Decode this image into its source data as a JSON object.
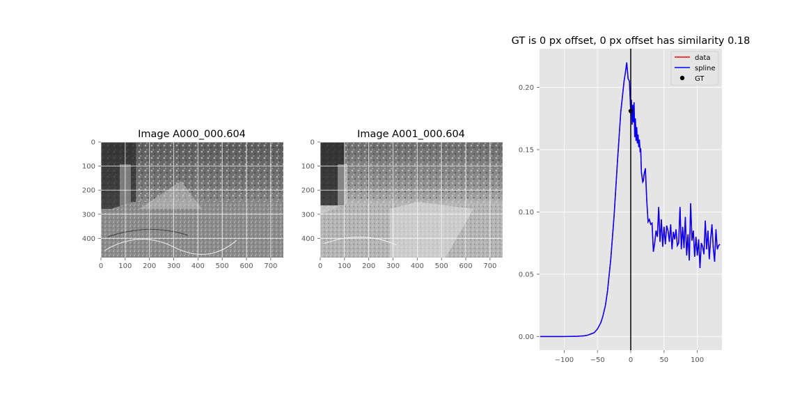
{
  "panels": [
    {
      "title": "Image A000_000.604",
      "xticks": [
        0,
        100,
        200,
        300,
        400,
        500,
        600,
        700
      ],
      "yticks": [
        0,
        100,
        200,
        300,
        400
      ],
      "xlim": [
        0,
        752
      ],
      "ylim": [
        480,
        0
      ],
      "image": "grayscale outdoor scene: overgrown path, trees and a shed on the left"
    },
    {
      "title": "Image A001_000.604",
      "xticks": [
        0,
        100,
        200,
        300,
        400,
        500,
        600,
        700
      ],
      "yticks": [
        0,
        100,
        200,
        300,
        400
      ],
      "xlim": [
        0,
        752
      ],
      "ylim": [
        480,
        0
      ],
      "image": "grayscale outdoor scene, brighter exposure: overgrown path, trees and a shed on the left"
    }
  ],
  "chart_data": {
    "type": "line",
    "title": "GT is 0 px offset, 0 px offset has similarity 0.18",
    "xlabel": "",
    "ylabel": "",
    "xlim": [
      -137,
      137
    ],
    "ylim": [
      -0.011,
      0.231
    ],
    "xticks": [
      -100,
      -50,
      0,
      50,
      100
    ],
    "xtick_labels": [
      "−100",
      "−50",
      "0",
      "50",
      "100"
    ],
    "yticks": [
      0.0,
      0.05,
      0.1,
      0.15,
      0.2
    ],
    "ytick_labels": [
      "0.00",
      "0.05",
      "0.10",
      "0.15",
      "0.20"
    ],
    "grid": true,
    "legend_position": "top-right",
    "background": "#e5e5e5",
    "vline_x": 0,
    "series": [
      {
        "name": "data",
        "color": "#ff0000",
        "x": [
          -136,
          -130,
          -120,
          -110,
          -100,
          -90,
          -80,
          -70,
          -65,
          -60,
          -55,
          -50,
          -45,
          -42,
          -38,
          -35,
          -30,
          -25,
          -20,
          -15,
          -10,
          -8,
          -6,
          -4,
          -2,
          0,
          1,
          2,
          3,
          4,
          5,
          6,
          7,
          8,
          9,
          10,
          11,
          12,
          13,
          14,
          15,
          16,
          17,
          18,
          19,
          20,
          22,
          24,
          26,
          28,
          30,
          32,
          34,
          36,
          38,
          40,
          42,
          44,
          46,
          48,
          50,
          52,
          54,
          56,
          58,
          60,
          62,
          64,
          66,
          68,
          70,
          72,
          74,
          76,
          78,
          80,
          82,
          84,
          86,
          88,
          90,
          92,
          94,
          96,
          98,
          100,
          102,
          104,
          106,
          108,
          110,
          112,
          114,
          116,
          118,
          120,
          122,
          124,
          126,
          128,
          130,
          132,
          134
        ],
        "y": [
          0.0,
          0.0,
          0.0,
          0.0,
          0.0,
          0.0,
          0.0002,
          0.0005,
          0.001,
          0.002,
          0.003,
          0.006,
          0.011,
          0.016,
          0.025,
          0.036,
          0.062,
          0.097,
          0.14,
          0.18,
          0.205,
          0.212,
          0.22,
          0.207,
          0.205,
          0.18,
          0.19,
          0.17,
          0.186,
          0.172,
          0.188,
          0.16,
          0.175,
          0.157,
          0.168,
          0.155,
          0.162,
          0.152,
          0.158,
          0.149,
          0.15,
          0.132,
          0.128,
          0.124,
          0.125,
          0.13,
          0.135,
          0.11,
          0.092,
          0.094,
          0.09,
          0.091,
          0.068,
          0.075,
          0.085,
          0.08,
          0.104,
          0.076,
          0.094,
          0.072,
          0.088,
          0.074,
          0.089,
          0.085,
          0.076,
          0.09,
          0.07,
          0.084,
          0.078,
          0.086,
          0.073,
          0.075,
          0.104,
          0.07,
          0.088,
          0.071,
          0.096,
          0.065,
          0.082,
          0.061,
          0.107,
          0.077,
          0.085,
          0.064,
          0.08,
          0.065,
          0.078,
          0.055,
          0.075,
          0.072,
          0.066,
          0.093,
          0.07,
          0.085,
          0.062,
          0.078,
          0.09,
          0.071,
          0.06,
          0.086,
          0.07,
          0.073,
          0.074
        ],
        "points": [
          [
            -136,
            0.0
          ],
          [
            -100,
            0.0
          ],
          [
            -80,
            0.0002
          ],
          [
            -70,
            0.0005
          ],
          [
            -65,
            0.001
          ],
          [
            -60,
            0.002
          ],
          [
            -55,
            0.003
          ],
          [
            -50,
            0.006
          ],
          [
            -45,
            0.011
          ],
          [
            -42,
            0.016
          ],
          [
            -38,
            0.025
          ],
          [
            -35,
            0.036
          ],
          [
            -30,
            0.062
          ],
          [
            -25,
            0.097
          ],
          [
            -20,
            0.14
          ],
          [
            -15,
            0.18
          ],
          [
            -10,
            0.205
          ],
          [
            -8,
            0.212
          ],
          [
            -6,
            0.22
          ],
          [
            -4,
            0.207
          ],
          [
            -2,
            0.205
          ],
          [
            0,
            0.18
          ],
          [
            1,
            0.19
          ],
          [
            2,
            0.17
          ],
          [
            3,
            0.186
          ],
          [
            4,
            0.172
          ],
          [
            5,
            0.188
          ],
          [
            6,
            0.16
          ],
          [
            7,
            0.175
          ],
          [
            8,
            0.157
          ],
          [
            9,
            0.168
          ],
          [
            10,
            0.155
          ],
          [
            11,
            0.162
          ],
          [
            12,
            0.152
          ],
          [
            13,
            0.158
          ],
          [
            14,
            0.149
          ],
          [
            15,
            0.15
          ],
          [
            16,
            0.132
          ],
          [
            17,
            0.128
          ],
          [
            18,
            0.124
          ],
          [
            19,
            0.125
          ],
          [
            20,
            0.13
          ],
          [
            22,
            0.135
          ],
          [
            24,
            0.11
          ],
          [
            26,
            0.092
          ],
          [
            28,
            0.094
          ],
          [
            30,
            0.09
          ],
          [
            32,
            0.091
          ],
          [
            34,
            0.068
          ],
          [
            36,
            0.075
          ],
          [
            38,
            0.085
          ],
          [
            40,
            0.08
          ],
          [
            42,
            0.104
          ],
          [
            44,
            0.076
          ],
          [
            46,
            0.094
          ],
          [
            48,
            0.072
          ],
          [
            50,
            0.088
          ],
          [
            52,
            0.074
          ],
          [
            54,
            0.089
          ],
          [
            56,
            0.085
          ],
          [
            58,
            0.076
          ],
          [
            60,
            0.09
          ],
          [
            62,
            0.07
          ],
          [
            64,
            0.084
          ],
          [
            66,
            0.078
          ],
          [
            68,
            0.086
          ],
          [
            70,
            0.073
          ],
          [
            72,
            0.075
          ],
          [
            74,
            0.104
          ],
          [
            76,
            0.07
          ],
          [
            78,
            0.088
          ],
          [
            80,
            0.071
          ],
          [
            82,
            0.096
          ],
          [
            84,
            0.065
          ],
          [
            86,
            0.082
          ],
          [
            88,
            0.061
          ],
          [
            90,
            0.107
          ],
          [
            92,
            0.077
          ],
          [
            94,
            0.085
          ],
          [
            96,
            0.064
          ],
          [
            98,
            0.08
          ],
          [
            100,
            0.065
          ],
          [
            102,
            0.078
          ],
          [
            104,
            0.055
          ],
          [
            106,
            0.075
          ],
          [
            108,
            0.072
          ],
          [
            110,
            0.066
          ],
          [
            112,
            0.093
          ],
          [
            114,
            0.07
          ],
          [
            116,
            0.085
          ],
          [
            118,
            0.062
          ],
          [
            120,
            0.078
          ],
          [
            122,
            0.09
          ],
          [
            124,
            0.071
          ],
          [
            126,
            0.06
          ],
          [
            128,
            0.086
          ],
          [
            130,
            0.07
          ],
          [
            132,
            0.073
          ],
          [
            134,
            0.074
          ]
        ]
      },
      {
        "name": "spline",
        "color": "#0000ff",
        "same_as": "data"
      }
    ],
    "gt_point": {
      "name": "GT",
      "x": 0,
      "y": 0.181,
      "color": "#000000"
    }
  }
}
